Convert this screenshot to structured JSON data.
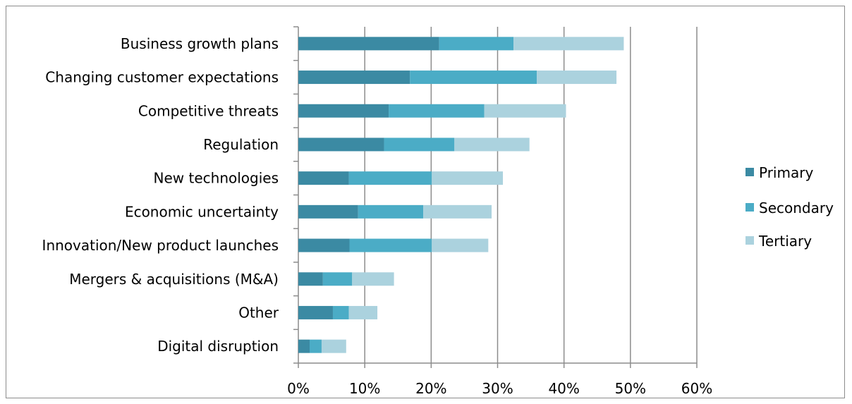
{
  "chart_data": {
    "type": "bar",
    "orientation": "horizontal",
    "stacked": true,
    "categories": [
      "Business growth plans",
      "Changing customer expectations",
      "Competitive threats",
      "Regulation",
      "New technologies",
      "Economic uncertainty",
      "Innovation/New product launches",
      "Mergers & acquisitions (M&A)",
      "Other",
      "Digital disruption"
    ],
    "series": [
      {
        "name": "Primary",
        "color": "#3b8aa3",
        "values": [
          21.2,
          16.8,
          13.6,
          12.9,
          7.6,
          9.0,
          7.7,
          3.7,
          5.2,
          1.7
        ]
      },
      {
        "name": "Secondary",
        "color": "#4bacc6",
        "values": [
          11.2,
          19.1,
          14.4,
          10.6,
          12.5,
          9.8,
          12.4,
          4.4,
          2.4,
          1.8
        ]
      },
      {
        "name": "Tertiary",
        "color": "#abd2de",
        "values": [
          16.6,
          12.0,
          12.3,
          11.3,
          10.7,
          10.3,
          8.5,
          6.3,
          4.3,
          3.7
        ]
      }
    ],
    "xlim": [
      0,
      60
    ],
    "xticks": [
      "0%",
      "10%",
      "20%",
      "30%",
      "40%",
      "50%",
      "60%"
    ],
    "grid": true,
    "legend": "right"
  }
}
